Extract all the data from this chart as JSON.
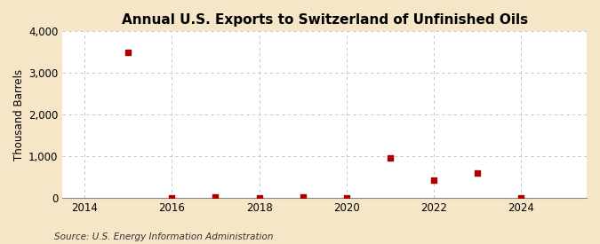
{
  "title": "Annual U.S. Exports to Switzerland of Unfinished Oils",
  "ylabel": "Thousand Barrels",
  "source_text": "Source: U.S. Energy Information Administration",
  "background_color": "#f5e6c8",
  "plot_background_color": "#ffffff",
  "x_values": [
    2015,
    2016,
    2017,
    2018,
    2019,
    2020,
    2021,
    2022,
    2023,
    2024
  ],
  "y_values": [
    3490,
    2,
    20,
    2,
    20,
    2,
    950,
    430,
    590,
    2
  ],
  "marker_color": "#aa0000",
  "marker_size": 18,
  "xlim": [
    2013.5,
    2025.5
  ],
  "ylim": [
    0,
    4000
  ],
  "yticks": [
    0,
    1000,
    2000,
    3000,
    4000
  ],
  "xticks": [
    2014,
    2016,
    2018,
    2020,
    2022,
    2024
  ],
  "grid_color": "#bbbbbb",
  "title_fontsize": 11,
  "axis_fontsize": 8.5,
  "source_fontsize": 7.5
}
